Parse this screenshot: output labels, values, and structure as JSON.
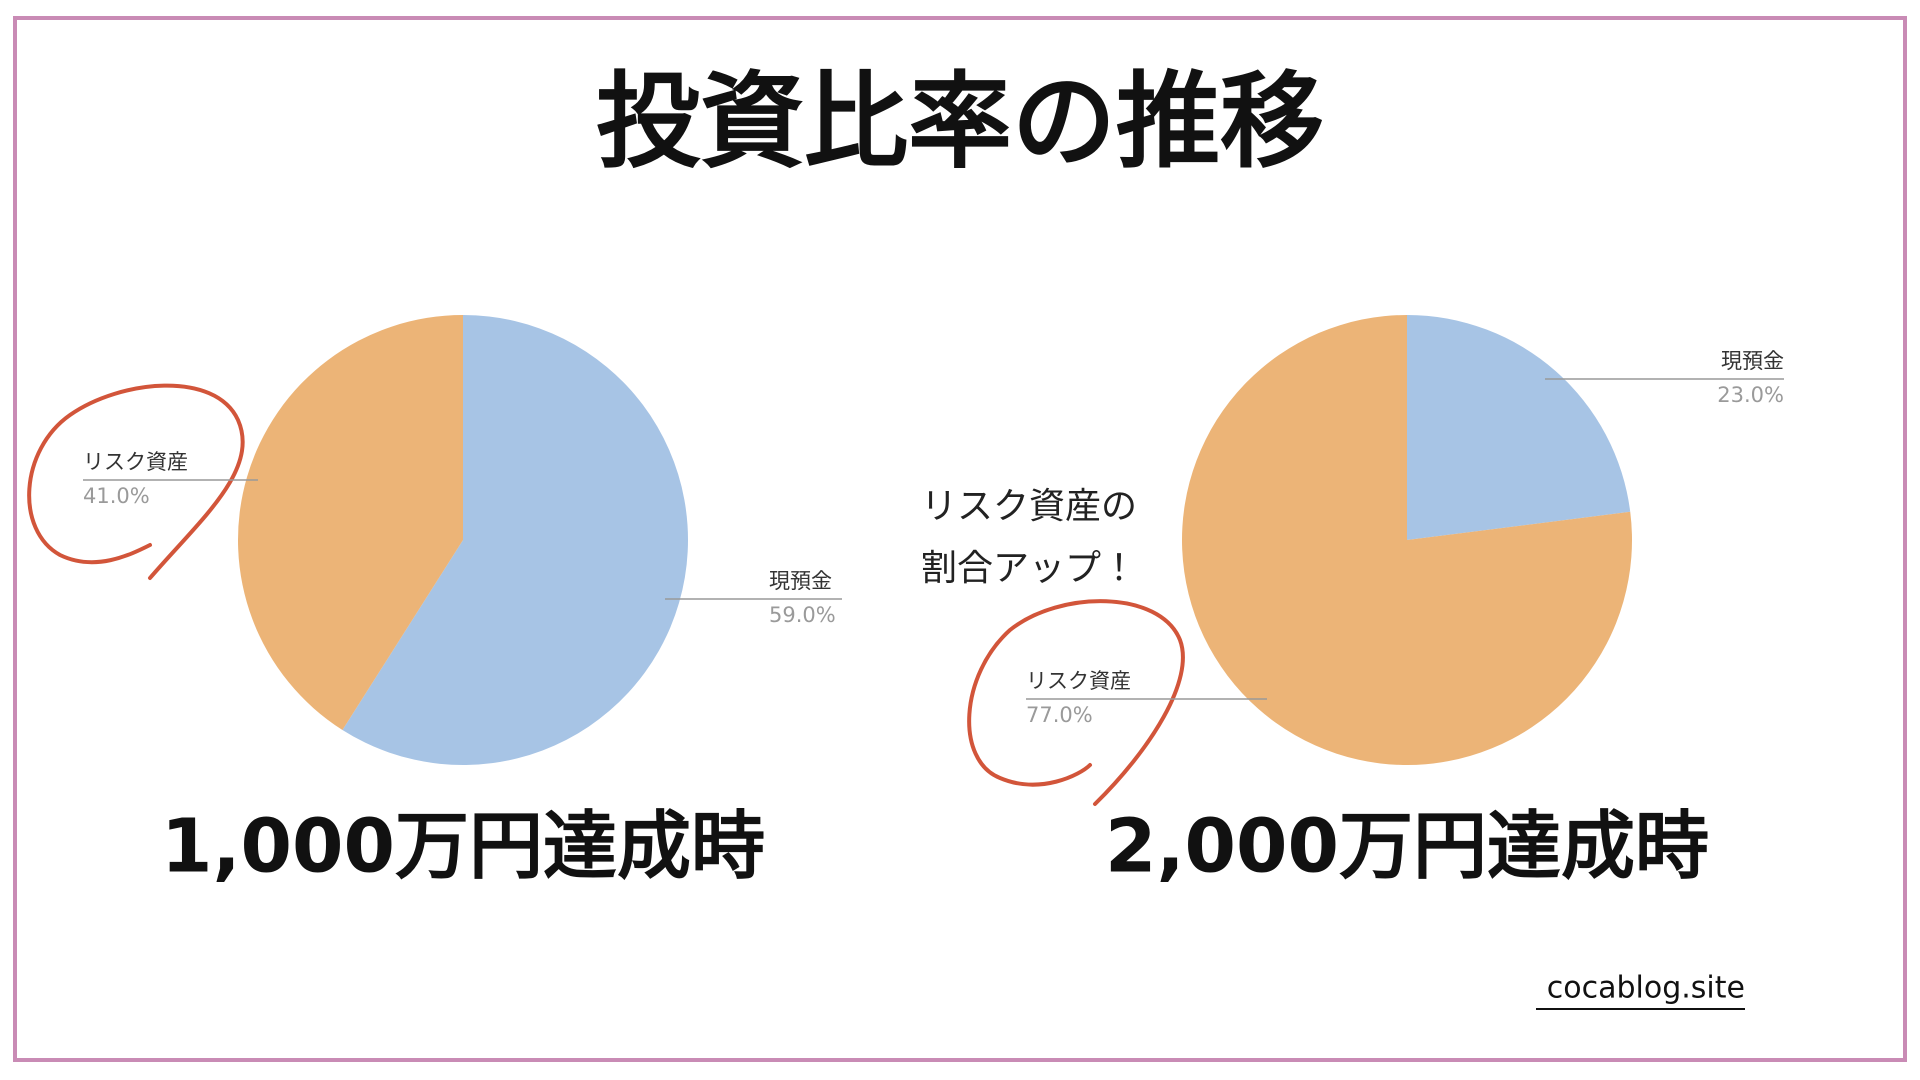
{
  "title": "投資比率の推移",
  "annotation": [
    "リスク資産の",
    "割合アップ！"
  ],
  "footer": "cocablog.site",
  "chart_data": [
    {
      "type": "pie",
      "title": "1,000万円達成時",
      "categories": [
        "現預金",
        "リスク資産"
      ],
      "values": [
        59.0,
        41.0
      ],
      "value_labels": [
        "59.0%",
        "41.0%"
      ],
      "colors": [
        "#a7c4e5",
        "#ecb477"
      ]
    },
    {
      "type": "pie",
      "title": "2,000万円達成時",
      "categories": [
        "現預金",
        "リスク資産"
      ],
      "values": [
        23.0,
        77.0
      ],
      "value_labels": [
        "23.0%",
        "77.0%"
      ],
      "colors": [
        "#a7c4e5",
        "#ecb477"
      ]
    }
  ]
}
